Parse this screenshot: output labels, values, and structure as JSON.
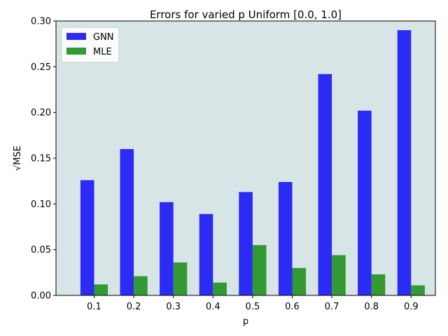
{
  "chart_data": {
    "type": "bar",
    "title": "Errors for varied p Uniform [0.0, 1.0]",
    "xlabel": "p",
    "ylabel": "√MSE",
    "categories": [
      "0.1",
      "0.2",
      "0.3",
      "0.4",
      "0.5",
      "0.6",
      "0.7",
      "0.8",
      "0.9"
    ],
    "series": [
      {
        "name": "GNN",
        "color": "#2b2bf5",
        "values": [
          0.126,
          0.16,
          0.102,
          0.089,
          0.113,
          0.124,
          0.242,
          0.202,
          0.29
        ]
      },
      {
        "name": "MLE",
        "color": "#339933",
        "values": [
          0.012,
          0.021,
          0.036,
          0.014,
          0.055,
          0.03,
          0.044,
          0.023,
          0.011
        ]
      }
    ],
    "ylim": [
      0.0,
      0.3
    ],
    "yticks": [
      "0.00",
      "0.05",
      "0.10",
      "0.15",
      "0.20",
      "0.25",
      "0.30"
    ],
    "plot_background": "#d8e5e7",
    "legend_position": "top-left",
    "grid": false
  }
}
